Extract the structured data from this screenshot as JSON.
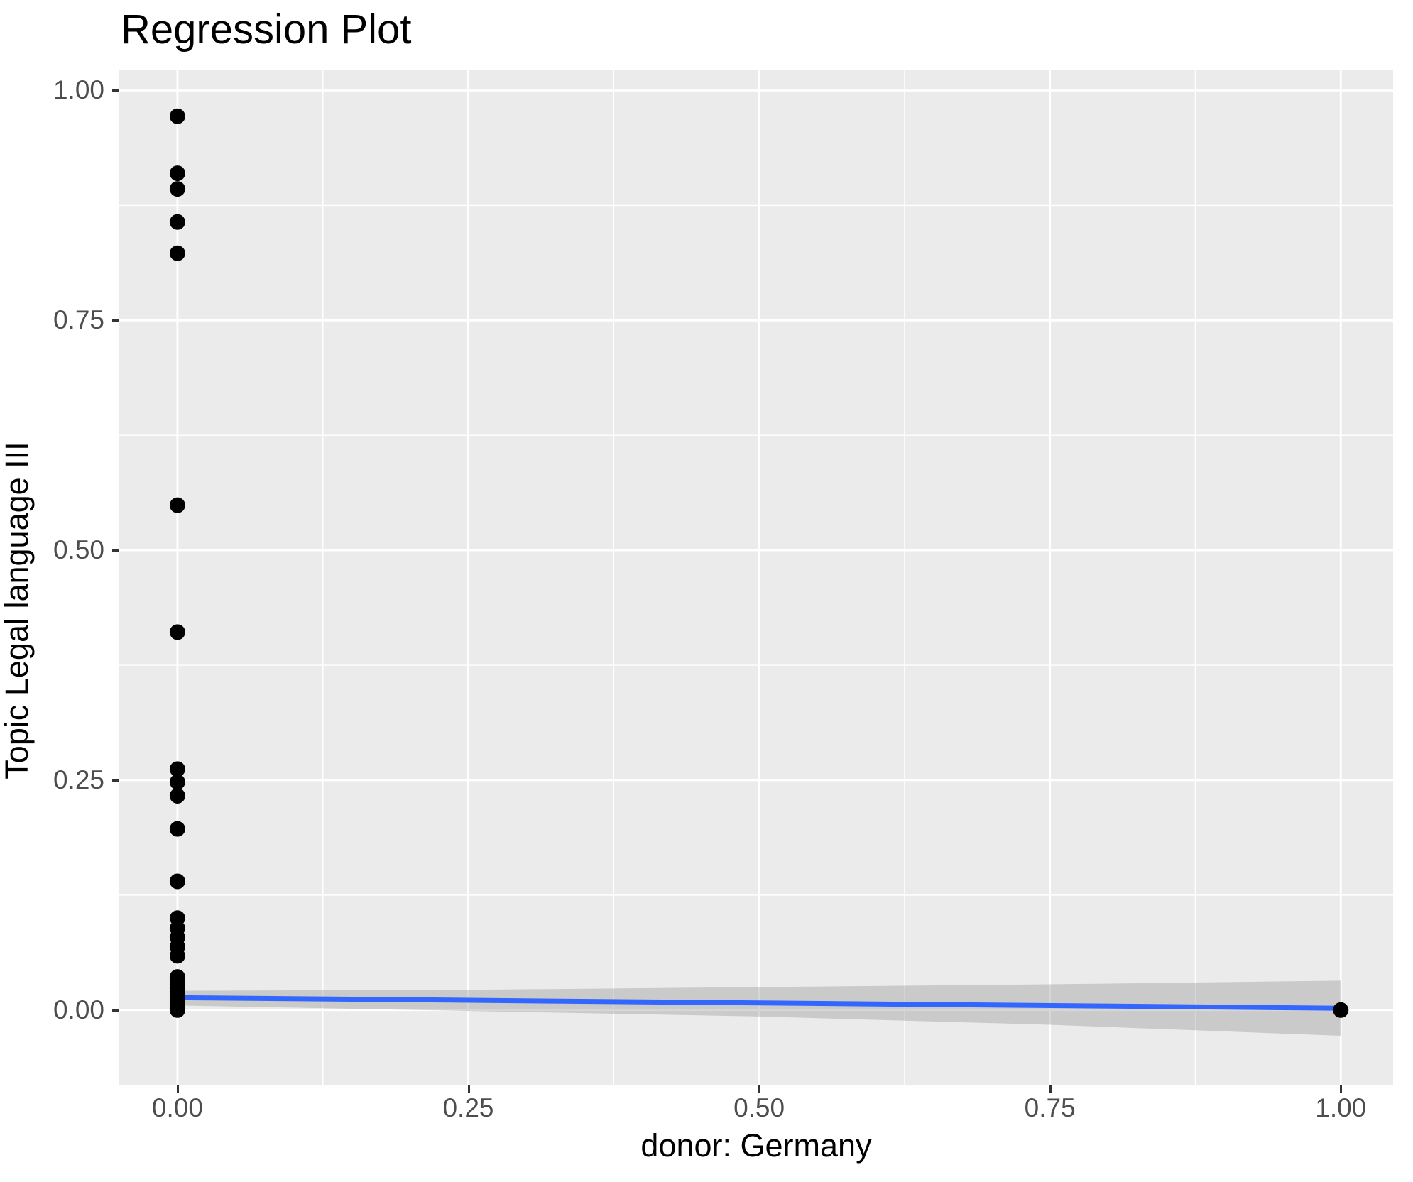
{
  "title": "Regression Plot",
  "chart_data": {
    "type": "scatter",
    "title": "Regression Plot",
    "xlabel": "donor: Germany",
    "ylabel": "Topic Legal language III",
    "grid": true,
    "legend": "none",
    "panel_background": "#EBEBEB",
    "gridline_color": "#FFFFFF",
    "axis_text_color": "#4D4D4D",
    "tick_mark_color": "#333333",
    "point_color": "#000000",
    "xlim": [
      -0.05,
      1.045
    ],
    "ylim": [
      -0.082,
      1.022
    ],
    "x_ticks": {
      "values": [
        0,
        0.25,
        0.5,
        0.75,
        1
      ],
      "labels": [
        "0.00",
        "0.25",
        "0.50",
        "0.75",
        "1.00"
      ]
    },
    "y_ticks": {
      "values": [
        0,
        0.25,
        0.5,
        0.75,
        1
      ],
      "labels": [
        "0.00",
        "0.25",
        "0.50",
        "0.75",
        "1.00"
      ]
    },
    "x_minor_gridlines": [
      0.125,
      0.375,
      0.625,
      0.875
    ],
    "y_minor_gridlines": [
      0.125,
      0.375,
      0.625,
      0.875
    ],
    "points": [
      {
        "x": 0,
        "y": 0.972
      },
      {
        "x": 0,
        "y": 0.91
      },
      {
        "x": 0,
        "y": 0.893
      },
      {
        "x": 0,
        "y": 0.857
      },
      {
        "x": 0,
        "y": 0.823
      },
      {
        "x": 0,
        "y": 0.549
      },
      {
        "x": 0,
        "y": 0.411
      },
      {
        "x": 0,
        "y": 0.262
      },
      {
        "x": 0,
        "y": 0.248
      },
      {
        "x": 0,
        "y": 0.233
      },
      {
        "x": 0,
        "y": 0.197
      },
      {
        "x": 0,
        "y": 0.14
      },
      {
        "x": 0,
        "y": 0.1
      },
      {
        "x": 0,
        "y": 0.089
      },
      {
        "x": 0,
        "y": 0.079
      },
      {
        "x": 0,
        "y": 0.069
      },
      {
        "x": 0,
        "y": 0.059
      },
      {
        "x": 0,
        "y": 0.036
      },
      {
        "x": 0,
        "y": 0.032
      },
      {
        "x": 0,
        "y": 0.028
      },
      {
        "x": 0,
        "y": 0.024
      },
      {
        "x": 0,
        "y": 0.02
      },
      {
        "x": 0,
        "y": 0.017
      },
      {
        "x": 0,
        "y": 0.014
      },
      {
        "x": 0,
        "y": 0.011
      },
      {
        "x": 0,
        "y": 0.008
      },
      {
        "x": 0,
        "y": 0.005
      },
      {
        "x": 0,
        "y": 0.002
      },
      {
        "x": 0,
        "y": 0.0
      },
      {
        "x": 1,
        "y": 0.0
      }
    ],
    "point_radius": 11,
    "regression_line": {
      "x": [
        0,
        1
      ],
      "y": [
        0.0135,
        0.002
      ],
      "color": "#3366FF",
      "width": 7
    },
    "confidence_band": {
      "x": [
        0,
        0.25,
        0.5,
        0.75,
        1
      ],
      "upper": [
        0.021,
        0.022,
        0.025,
        0.028,
        0.032
      ],
      "lower": [
        0.005,
        -0.001,
        -0.007,
        -0.016,
        -0.028
      ],
      "fill": "#999999",
      "opacity": 0.4
    }
  }
}
